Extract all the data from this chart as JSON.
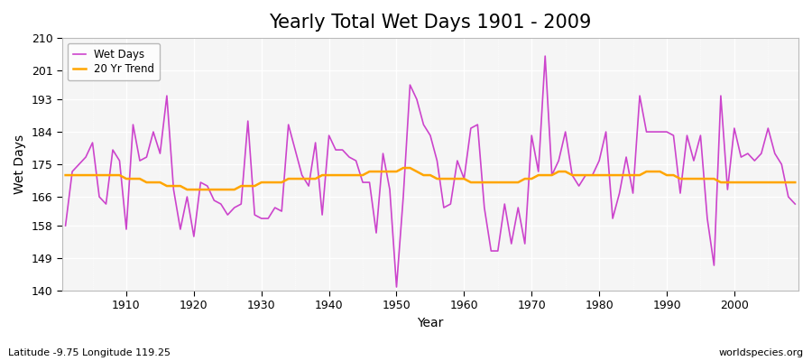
{
  "title": "Yearly Total Wet Days 1901 - 2009",
  "xlabel": "Year",
  "ylabel": "Wet Days",
  "subtitle_left": "Latitude -9.75 Longitude 119.25",
  "subtitle_right": "worldspecies.org",
  "ylim": [
    140,
    210
  ],
  "yticks": [
    140,
    149,
    158,
    166,
    175,
    184,
    193,
    201,
    210
  ],
  "line_color": "#cc44cc",
  "trend_color": "#ffa500",
  "fig_bg_color": "#ffffff",
  "plot_bg_color": "#f5f5f5",
  "years": [
    1901,
    1902,
    1903,
    1904,
    1905,
    1906,
    1907,
    1908,
    1909,
    1910,
    1911,
    1912,
    1913,
    1914,
    1915,
    1916,
    1917,
    1918,
    1919,
    1920,
    1921,
    1922,
    1923,
    1924,
    1925,
    1926,
    1927,
    1928,
    1929,
    1930,
    1931,
    1932,
    1933,
    1934,
    1935,
    1936,
    1937,
    1938,
    1939,
    1940,
    1941,
    1942,
    1943,
    1944,
    1945,
    1946,
    1947,
    1948,
    1949,
    1950,
    1951,
    1952,
    1953,
    1954,
    1955,
    1956,
    1957,
    1958,
    1959,
    1960,
    1961,
    1962,
    1963,
    1964,
    1965,
    1966,
    1967,
    1968,
    1969,
    1970,
    1971,
    1972,
    1973,
    1974,
    1975,
    1976,
    1977,
    1978,
    1979,
    1980,
    1981,
    1982,
    1983,
    1984,
    1985,
    1986,
    1987,
    1988,
    1989,
    1990,
    1991,
    1992,
    1993,
    1994,
    1995,
    1996,
    1997,
    1998,
    1999,
    2000,
    2001,
    2002,
    2003,
    2004,
    2005,
    2006,
    2007,
    2008,
    2009
  ],
  "wet_days": [
    158,
    173,
    175,
    177,
    181,
    166,
    164,
    179,
    176,
    157,
    186,
    176,
    177,
    184,
    178,
    194,
    168,
    157,
    166,
    155,
    170,
    169,
    165,
    164,
    161,
    163,
    164,
    187,
    161,
    160,
    160,
    163,
    162,
    186,
    179,
    172,
    169,
    181,
    161,
    183,
    179,
    179,
    177,
    176,
    170,
    170,
    156,
    178,
    168,
    141,
    166,
    197,
    193,
    186,
    183,
    176,
    163,
    164,
    176,
    171,
    185,
    186,
    163,
    151,
    151,
    164,
    153,
    163,
    153,
    183,
    173,
    205,
    172,
    176,
    184,
    172,
    169,
    172,
    172,
    176,
    184,
    160,
    167,
    177,
    167,
    194,
    184,
    184,
    184,
    184,
    183,
    167,
    183,
    176,
    183,
    160,
    147,
    194,
    168,
    185,
    177,
    178,
    176,
    178,
    185,
    178,
    175,
    166,
    164
  ],
  "trend": [
    172,
    172,
    172,
    172,
    172,
    172,
    172,
    172,
    172,
    171,
    171,
    171,
    170,
    170,
    170,
    169,
    169,
    169,
    168,
    168,
    168,
    168,
    168,
    168,
    168,
    168,
    169,
    169,
    169,
    170,
    170,
    170,
    170,
    171,
    171,
    171,
    171,
    171,
    172,
    172,
    172,
    172,
    172,
    172,
    172,
    173,
    173,
    173,
    173,
    173,
    174,
    174,
    173,
    172,
    172,
    171,
    171,
    171,
    171,
    171,
    170,
    170,
    170,
    170,
    170,
    170,
    170,
    170,
    171,
    171,
    172,
    172,
    172,
    173,
    173,
    172,
    172,
    172,
    172,
    172,
    172,
    172,
    172,
    172,
    172,
    172,
    173,
    173,
    173,
    172,
    172,
    171,
    171,
    171,
    171,
    171,
    171,
    170,
    170,
    170,
    170,
    170,
    170,
    170,
    170,
    170,
    170,
    170,
    170
  ]
}
